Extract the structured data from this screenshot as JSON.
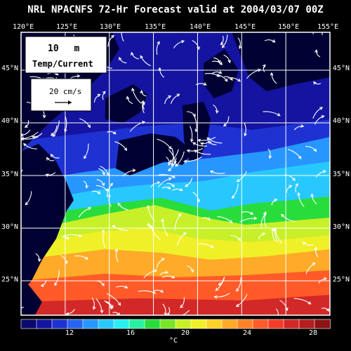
{
  "title": "NRL NPACNFS 72-Hr Forecast valid at 2004/03/07 00Z",
  "map": {
    "lon_labels": [
      "120°E",
      "125°E",
      "130°E",
      "135°E",
      "140°E",
      "145°E",
      "150°E",
      "155°E"
    ],
    "lat_labels": [
      "45°N",
      "40°N",
      "35°N",
      "30°N",
      "25°N"
    ],
    "lon_range": [
      120,
      155
    ],
    "lat_range": [
      22,
      48
    ],
    "depth_value": "10",
    "depth_unit": "m",
    "field_label": "Temp/Current",
    "reference_vector_label": "20 cm/s",
    "land_color": "#000033",
    "frame_color": "#ffffff"
  },
  "colorbar": {
    "unit": "°C",
    "tick_labels": [
      "12",
      "16",
      "20",
      "24",
      "28"
    ],
    "tick_values": [
      12,
      16,
      20,
      24,
      28
    ],
    "range": [
      9,
      29
    ],
    "colors": [
      "#0a0a6e",
      "#1414a0",
      "#1e32d2",
      "#2864f0",
      "#2896ff",
      "#28c8ff",
      "#28f0f0",
      "#28f0a0",
      "#28dc3c",
      "#78e628",
      "#c8f028",
      "#f0f028",
      "#ffd228",
      "#ffaa28",
      "#ff8228",
      "#ff5a28",
      "#f03c28",
      "#d22828",
      "#b41e1e",
      "#8c1414"
    ]
  }
}
